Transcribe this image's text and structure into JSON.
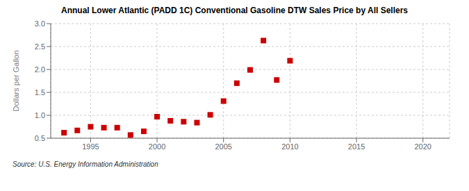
{
  "chart_data": {
    "type": "scatter",
    "title": "Annual Lower Atlantic (PADD 1C) Conventional Gasoline DTW Sales Price by All Sellers",
    "ylabel": "Dollars per Gallon",
    "annotations": [
      "Source: U.S. Energy Information Administration"
    ],
    "x": [
      1993,
      1994,
      1995,
      1996,
      1997,
      1998,
      1999,
      2000,
      2001,
      2002,
      2003,
      2004,
      2005,
      2006,
      2007,
      2008,
      2009,
      2010
    ],
    "values": [
      0.62,
      0.67,
      0.75,
      0.73,
      0.73,
      0.57,
      0.65,
      0.97,
      0.88,
      0.86,
      0.84,
      1.01,
      1.31,
      1.7,
      1.99,
      2.63,
      1.77,
      2.19
    ],
    "color": "#cc0000",
    "marker": "square",
    "xlim": [
      1992,
      2022
    ],
    "ylim": [
      0.5,
      3.0
    ],
    "xticks": [
      1995,
      2000,
      2005,
      2010,
      2015,
      2020
    ],
    "yticks": [
      0.5,
      {
        "value": 1.0,
        "label": "1.0"
      },
      1.5,
      {
        "value": 2.0,
        "label": "2.0"
      },
      2.5,
      {
        "value": 3.0,
        "label": "3.0"
      }
    ],
    "grid": true
  }
}
